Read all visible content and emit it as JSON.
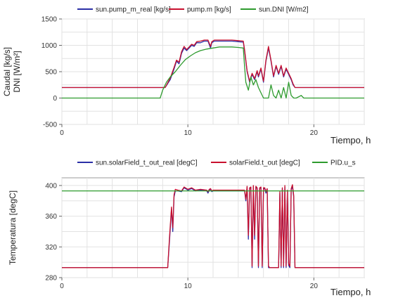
{
  "chart_data": [
    {
      "type": "line",
      "legend_position": "top",
      "grid": true,
      "xlabel": "Tiempo, h",
      "ylabel_lines": [
        "Caudal [kg/s]",
        "DNI [W/m²]"
      ],
      "xlim": [
        0,
        24
      ],
      "ylim": [
        -500,
        1500
      ],
      "xticks": [
        0,
        10,
        20
      ],
      "yticks": [
        -500,
        0,
        500,
        1000,
        1500
      ],
      "series": [
        {
          "name": "sun.pump_m_real [kg/s]",
          "color": "#2b2fa6",
          "x": [
            0,
            8.2,
            8.6,
            8.9,
            9.1,
            9.3,
            9.5,
            9.7,
            9.9,
            10.1,
            10.3,
            10.5,
            10.7,
            11.0,
            11.3,
            11.6,
            11.8,
            11.9,
            12.1,
            12.5,
            13.0,
            13.5,
            14.0,
            14.4,
            14.5,
            14.7,
            14.9,
            15.1,
            15.3,
            15.5,
            15.6,
            15.8,
            16.0,
            16.2,
            16.4,
            16.6,
            16.8,
            17.0,
            17.2,
            17.4,
            17.6,
            17.8,
            18.0,
            18.2,
            18.35,
            18.5,
            24
          ],
          "y": [
            200,
            200,
            350,
            550,
            700,
            650,
            850,
            950,
            900,
            950,
            1000,
            980,
            1050,
            1050,
            1080,
            1080,
            950,
            1050,
            1080,
            1080,
            1080,
            1080,
            1070,
            1060,
            900,
            500,
            300,
            450,
            350,
            500,
            400,
            550,
            300,
            700,
            950,
            700,
            400,
            600,
            450,
            600,
            400,
            550,
            450,
            350,
            250,
            200,
            200
          ]
        },
        {
          "name": "pump.m [kg/s]",
          "color": "#c8102e",
          "x": [
            0,
            8.2,
            8.6,
            8.9,
            9.1,
            9.3,
            9.5,
            9.7,
            9.9,
            10.1,
            10.3,
            10.5,
            10.7,
            11.0,
            11.3,
            11.6,
            11.8,
            11.9,
            12.1,
            12.5,
            13.0,
            13.5,
            14.0,
            14.4,
            14.5,
            14.7,
            14.9,
            15.1,
            15.3,
            15.5,
            15.6,
            15.8,
            16.0,
            16.2,
            16.4,
            16.6,
            16.8,
            17.0,
            17.2,
            17.4,
            17.6,
            17.8,
            18.0,
            18.2,
            18.35,
            18.5,
            24
          ],
          "y": [
            200,
            200,
            380,
            580,
            720,
            680,
            880,
            980,
            920,
            970,
            1020,
            1000,
            1070,
            1080,
            1100,
            1100,
            980,
            1070,
            1100,
            1100,
            1100,
            1100,
            1090,
            1080,
            920,
            520,
            320,
            470,
            370,
            520,
            420,
            570,
            320,
            720,
            980,
            720,
            420,
            620,
            470,
            620,
            420,
            570,
            470,
            370,
            270,
            200,
            200
          ]
        },
        {
          "name": "sun.DNI [W/m2]",
          "color": "#2e9b2e",
          "x": [
            0,
            7.8,
            8.0,
            8.3,
            8.6,
            9.0,
            9.4,
            9.8,
            10.2,
            10.6,
            11.0,
            11.5,
            12.0,
            12.5,
            13.0,
            13.5,
            14.0,
            14.4,
            14.5,
            14.6,
            14.8,
            15.0,
            15.2,
            15.4,
            15.6,
            15.8,
            16.0,
            16.2,
            16.4,
            16.6,
            16.8,
            17.0,
            17.2,
            17.4,
            17.6,
            17.8,
            18.0,
            18.2,
            18.4,
            18.6,
            19.0,
            19.2,
            19.4,
            20.0,
            24
          ],
          "y": [
            0,
            0,
            150,
            300,
            400,
            500,
            620,
            730,
            800,
            860,
            900,
            930,
            950,
            970,
            970,
            970,
            960,
            950,
            600,
            300,
            150,
            400,
            250,
            350,
            200,
            100,
            0,
            0,
            0,
            250,
            50,
            0,
            150,
            0,
            200,
            0,
            300,
            50,
            0,
            0,
            50,
            0,
            0,
            0,
            0
          ]
        }
      ]
    },
    {
      "type": "line",
      "legend_position": "top",
      "grid": true,
      "xlabel": "Tiempo, h",
      "ylabel_lines": [
        "Temperatura [degC]"
      ],
      "xlim": [
        0,
        24
      ],
      "ylim": [
        280,
        410
      ],
      "xticks": [
        0,
        10,
        20
      ],
      "yticks": [
        280,
        320,
        360,
        400
      ],
      "series": [
        {
          "name": "sun.solarField_t_out_real [degC]",
          "color": "#2b2fa6",
          "x": [
            0,
            8.4,
            8.55,
            8.7,
            8.8,
            8.9,
            9.0,
            9.2,
            9.5,
            9.7,
            10.0,
            10.3,
            10.6,
            11.0,
            11.5,
            11.6,
            11.7,
            11.8,
            11.9,
            12.0,
            14.5,
            14.6,
            14.7,
            14.8,
            14.9,
            15.0,
            15.1,
            15.2,
            15.3,
            15.4,
            15.5,
            15.6,
            15.7,
            15.8,
            15.9,
            16.0,
            16.1,
            16.2,
            16.3,
            16.4,
            16.5,
            17.2,
            17.3,
            17.4,
            17.5,
            17.6,
            17.7,
            17.8,
            17.9,
            18.0,
            18.1,
            18.2,
            18.3,
            18.4,
            18.5,
            18.6,
            24
          ],
          "y": [
            293,
            293,
            330,
            370,
            340,
            385,
            393,
            393,
            392,
            397,
            394,
            396,
            393,
            394,
            393,
            390,
            394,
            395,
            392,
            393,
            393,
            380,
            398,
            330,
            396,
            397,
            293,
            399,
            330,
            398,
            396,
            293,
            396,
            397,
            293,
            396,
            396,
            390,
            395,
            293,
            293,
            293,
            390,
            293,
            396,
            293,
            398,
            293,
            393,
            296,
            293,
            395,
            398,
            385,
            293,
            293,
            293
          ]
        },
        {
          "name": "solarField.t_out [degC]",
          "color": "#c8102e",
          "x": [
            0,
            8.4,
            8.55,
            8.7,
            8.8,
            8.9,
            9.0,
            9.2,
            9.5,
            9.7,
            10.0,
            10.3,
            10.6,
            11.0,
            11.5,
            11.6,
            11.7,
            11.8,
            11.9,
            12.0,
            14.5,
            14.6,
            14.7,
            14.8,
            14.9,
            15.0,
            15.1,
            15.2,
            15.3,
            15.4,
            15.5,
            15.6,
            15.7,
            15.8,
            15.9,
            16.0,
            16.1,
            16.2,
            16.3,
            16.4,
            16.5,
            17.2,
            17.3,
            17.4,
            17.5,
            17.6,
            17.7,
            17.8,
            17.9,
            18.0,
            18.1,
            18.2,
            18.3,
            18.4,
            18.5,
            18.6,
            24
          ],
          "y": [
            293,
            293,
            335,
            372,
            345,
            388,
            395,
            394,
            393,
            398,
            395,
            397,
            394,
            395,
            394,
            392,
            395,
            396,
            393,
            394,
            394,
            382,
            399,
            335,
            397,
            398,
            295,
            400,
            335,
            399,
            397,
            295,
            397,
            398,
            295,
            397,
            397,
            392,
            396,
            295,
            293,
            293,
            392,
            295,
            397,
            295,
            400,
            295,
            394,
            298,
            295,
            396,
            401,
            387,
            293,
            293,
            293
          ]
        },
        {
          "name": "PID.u_s",
          "color": "#2e9b2e",
          "x": [
            0,
            24
          ],
          "y": [
            393,
            393
          ]
        }
      ]
    }
  ]
}
